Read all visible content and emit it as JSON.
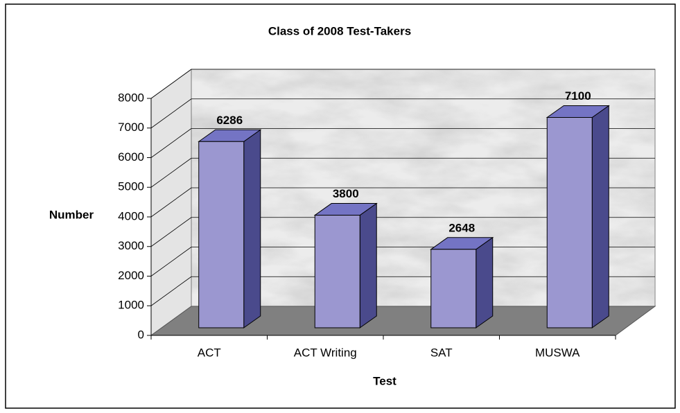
{
  "chart_data": {
    "type": "bar",
    "title": "Class of 2008 Test-Takers",
    "x_label": "Test",
    "y_label": "Number",
    "categories": [
      "ACT",
      "ACT Writing",
      "SAT",
      "MUSWA"
    ],
    "values": [
      6286,
      3800,
      2648,
      7100
    ],
    "color": "#9b97d0",
    "ylim": [
      0,
      8000
    ],
    "yticks": [
      0,
      1000,
      2000,
      3000,
      4000,
      5000,
      6000,
      7000,
      8000
    ],
    "grid": true
  }
}
